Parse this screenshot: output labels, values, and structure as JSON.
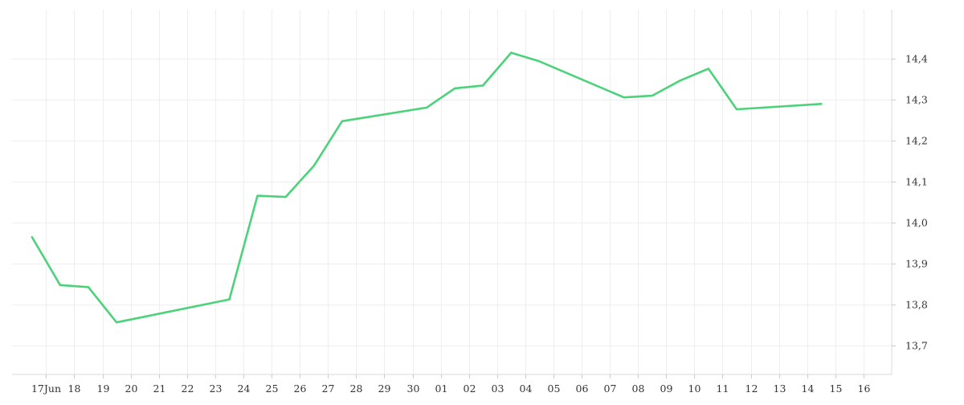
{
  "chart_data": {
    "type": "line",
    "title": "",
    "xlabel": "",
    "ylabel": "",
    "x_axis": {
      "type": "date",
      "ticks": [
        {
          "date": "2024-06-17",
          "label": "17Jun"
        },
        {
          "date": "2024-06-18",
          "label": "18"
        },
        {
          "date": "2024-06-19",
          "label": "19"
        },
        {
          "date": "2024-06-20",
          "label": "20"
        },
        {
          "date": "2024-06-21",
          "label": "21"
        },
        {
          "date": "2024-06-22",
          "label": "22"
        },
        {
          "date": "2024-06-23",
          "label": "23"
        },
        {
          "date": "2024-06-24",
          "label": "24"
        },
        {
          "date": "2024-06-25",
          "label": "25"
        },
        {
          "date": "2024-06-26",
          "label": "26"
        },
        {
          "date": "2024-06-27",
          "label": "27"
        },
        {
          "date": "2024-06-28",
          "label": "28"
        },
        {
          "date": "2024-06-29",
          "label": "29"
        },
        {
          "date": "2024-06-30",
          "label": "30"
        },
        {
          "date": "2024-07-01",
          "label": "01"
        },
        {
          "date": "2024-07-02",
          "label": "02"
        },
        {
          "date": "2024-07-03",
          "label": "03"
        },
        {
          "date": "2024-07-04",
          "label": "04"
        },
        {
          "date": "2024-07-05",
          "label": "05"
        },
        {
          "date": "2024-07-06",
          "label": "06"
        },
        {
          "date": "2024-07-07",
          "label": "07"
        },
        {
          "date": "2024-07-08",
          "label": "08"
        },
        {
          "date": "2024-07-09",
          "label": "09"
        },
        {
          "date": "2024-07-10",
          "label": "10"
        },
        {
          "date": "2024-07-11",
          "label": "11"
        },
        {
          "date": "2024-07-12",
          "label": "12"
        },
        {
          "date": "2024-07-13",
          "label": "13"
        },
        {
          "date": "2024-07-14",
          "label": "14"
        },
        {
          "date": "2024-07-15",
          "label": "15"
        },
        {
          "date": "2024-07-16",
          "label": "16"
        }
      ]
    },
    "y_axis": {
      "position": "right",
      "range": [
        13.63,
        14.52
      ],
      "ticks": [
        13.7,
        13.8,
        13.9,
        14.0,
        14.1,
        14.2,
        14.3,
        14.4
      ],
      "tick_labels": [
        "13,7",
        "13,8",
        "13,9",
        "14,0",
        "14,1",
        "14,2",
        "14,3",
        "14,4"
      ]
    },
    "x_range": [
      "2024-06-15T19:00:00",
      "2024-07-17T00:00:00"
    ],
    "grid": true,
    "legend": "none",
    "series": [
      {
        "color": "#4cd27a",
        "points": [
          {
            "x": "2024-06-16T12:00",
            "y": 13.965
          },
          {
            "x": "2024-06-17T12:00",
            "y": 13.848
          },
          {
            "x": "2024-06-18T12:00",
            "y": 13.843
          },
          {
            "x": "2024-06-19T12:00",
            "y": 13.757
          },
          {
            "x": "2024-06-23T12:00",
            "y": 13.813
          },
          {
            "x": "2024-06-24T12:00",
            "y": 14.066
          },
          {
            "x": "2024-06-25T12:00",
            "y": 14.063
          },
          {
            "x": "2024-06-26T12:00",
            "y": 14.139
          },
          {
            "x": "2024-06-27T12:00",
            "y": 14.248
          },
          {
            "x": "2024-06-30T12:00",
            "y": 14.281
          },
          {
            "x": "2024-07-01T12:00",
            "y": 14.328
          },
          {
            "x": "2024-07-02T12:00",
            "y": 14.335
          },
          {
            "x": "2024-07-03T12:00",
            "y": 14.415
          },
          {
            "x": "2024-07-04T12:00",
            "y": 14.394
          },
          {
            "x": "2024-07-07T12:00",
            "y": 14.306
          },
          {
            "x": "2024-07-08T12:00",
            "y": 14.31
          },
          {
            "x": "2024-07-09T12:00",
            "y": 14.347
          },
          {
            "x": "2024-07-10T12:00",
            "y": 14.376
          },
          {
            "x": "2024-07-11T12:00",
            "y": 14.277
          },
          {
            "x": "2024-07-14T12:00",
            "y": 14.29
          }
        ]
      }
    ]
  }
}
